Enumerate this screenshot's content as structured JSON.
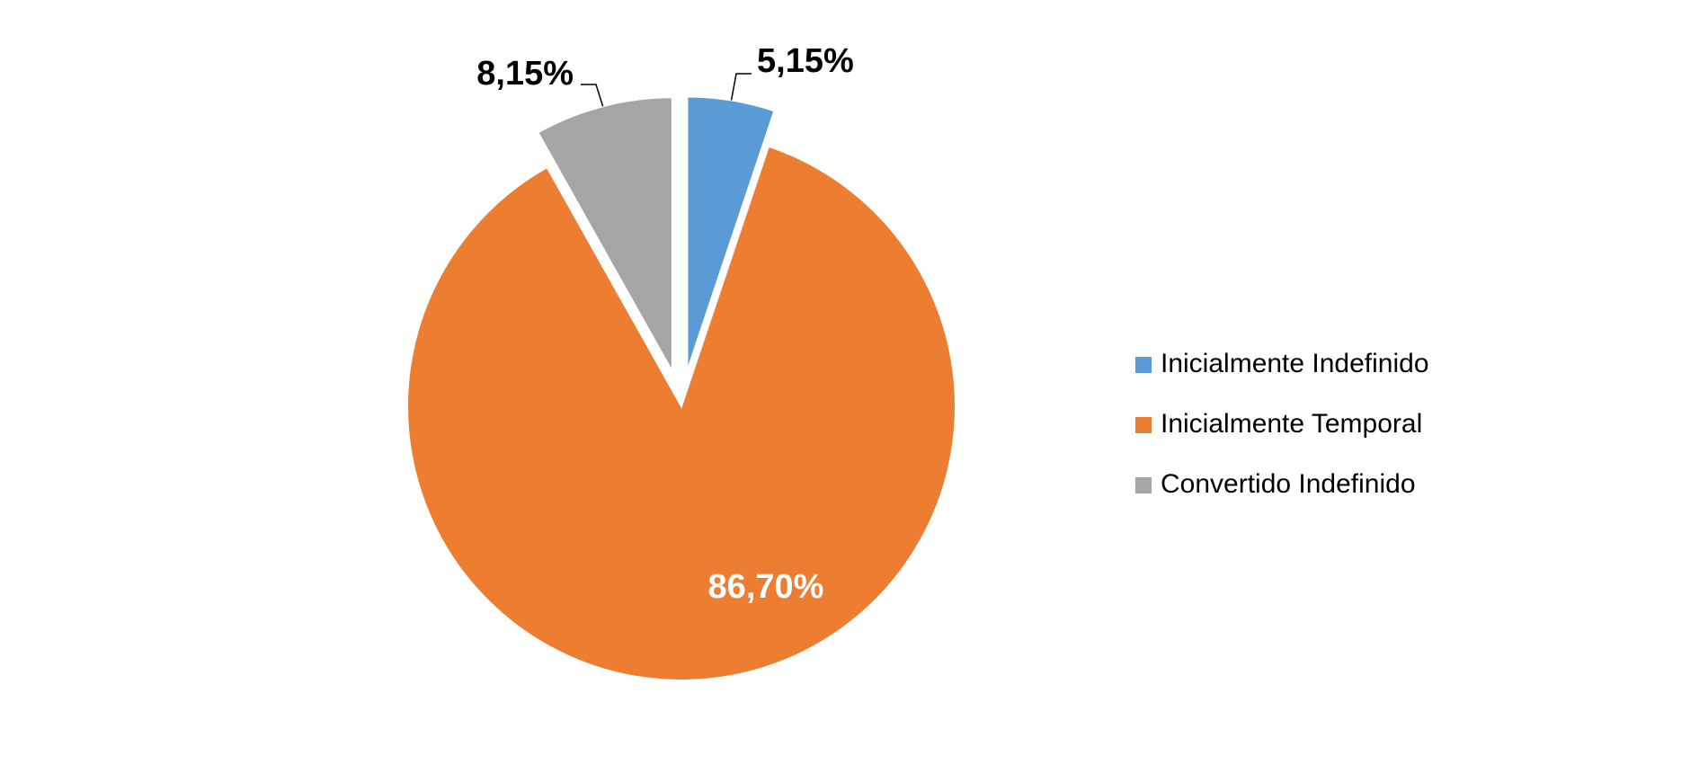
{
  "chart_data": {
    "type": "pie",
    "title": "",
    "slices": [
      {
        "label": "Inicialmente Indefinido",
        "value": 5.15,
        "display": "5,15%",
        "color": "#5B9BD5",
        "exploded": true
      },
      {
        "label": "Inicialmente Temporal",
        "value": 86.7,
        "display": "86,70%",
        "color": "#ED7D31",
        "exploded": false
      },
      {
        "label": "Convertido Indefinido",
        "value": 8.15,
        "display": "8,15%",
        "color": "#A5A5A5",
        "exploded": true
      }
    ],
    "start_angle": "12 o'clock, clockwise",
    "legend": {
      "position": "right",
      "items": [
        "Inicialmente Indefinido",
        "Inicialmente Temporal",
        "Convertido Indefinido"
      ]
    }
  }
}
